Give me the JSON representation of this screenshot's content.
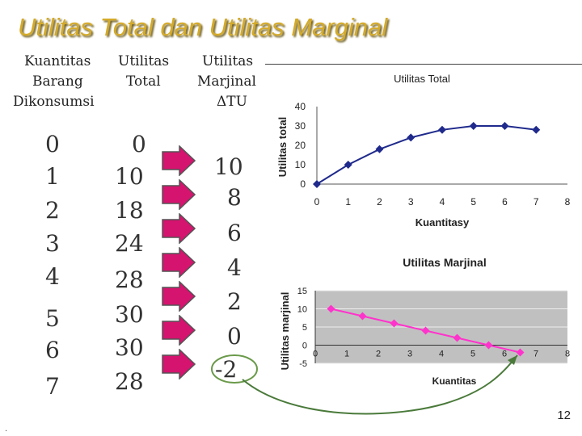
{
  "title": "Utilitas Total dan Utilitas Marginal",
  "headers": {
    "col1": [
      "Kuantitas",
      "Barang",
      "Dikonsumsi"
    ],
    "col2": [
      "Utilitas",
      "Total"
    ],
    "col3": [
      "Utilitas",
      "Marjinal",
      "ΔTU"
    ]
  },
  "quantities": [
    "0",
    "1",
    "2",
    "3",
    "4",
    "5",
    "6",
    "7"
  ],
  "total_utility": [
    "0",
    "10",
    "18",
    "24",
    "28",
    "30",
    "30",
    "28"
  ],
  "marginal_utility": [
    "10",
    "8",
    "6",
    "4",
    "2",
    "0",
    "-2"
  ],
  "page_number": "12",
  "colors": {
    "title": "#d4aa2a",
    "arrow_fill": "#d4146e",
    "tu_line": "#1f2a8c",
    "mu_line": "#ff33cc",
    "mu_plot_bg": "#c0c0c0"
  },
  "chart_data": [
    {
      "type": "line",
      "title": "Utilitas Total",
      "xlabel": "Kuantitasy",
      "ylabel": "Utilitas total",
      "x": [
        0,
        1,
        2,
        3,
        4,
        5,
        6,
        7
      ],
      "y": [
        0,
        10,
        18,
        24,
        28,
        30,
        30,
        28
      ],
      "xlim": [
        0,
        8
      ],
      "ylim": [
        0,
        40
      ],
      "xticks": [
        "0",
        "1",
        "2",
        "3",
        "4",
        "5",
        "6",
        "7",
        "8"
      ],
      "yticks": [
        "0",
        "10",
        "20",
        "30",
        "40"
      ],
      "grid": false
    },
    {
      "type": "line",
      "title": "Utilitas Marjinal",
      "xlabel": "Kuantitas",
      "ylabel": "Utilitas marjinal",
      "x": [
        0.5,
        1.5,
        2.5,
        3.5,
        4.5,
        5.5,
        6.5
      ],
      "y": [
        10,
        8,
        6,
        4,
        2,
        0,
        -2
      ],
      "xlim": [
        0,
        8
      ],
      "ylim": [
        -5,
        15
      ],
      "xticks": [
        "0",
        "1",
        "2",
        "3",
        "4",
        "5",
        "6",
        "7",
        "8"
      ],
      "yticks": [
        "-5",
        "0",
        "5",
        "10",
        "15"
      ],
      "grid": true
    }
  ]
}
